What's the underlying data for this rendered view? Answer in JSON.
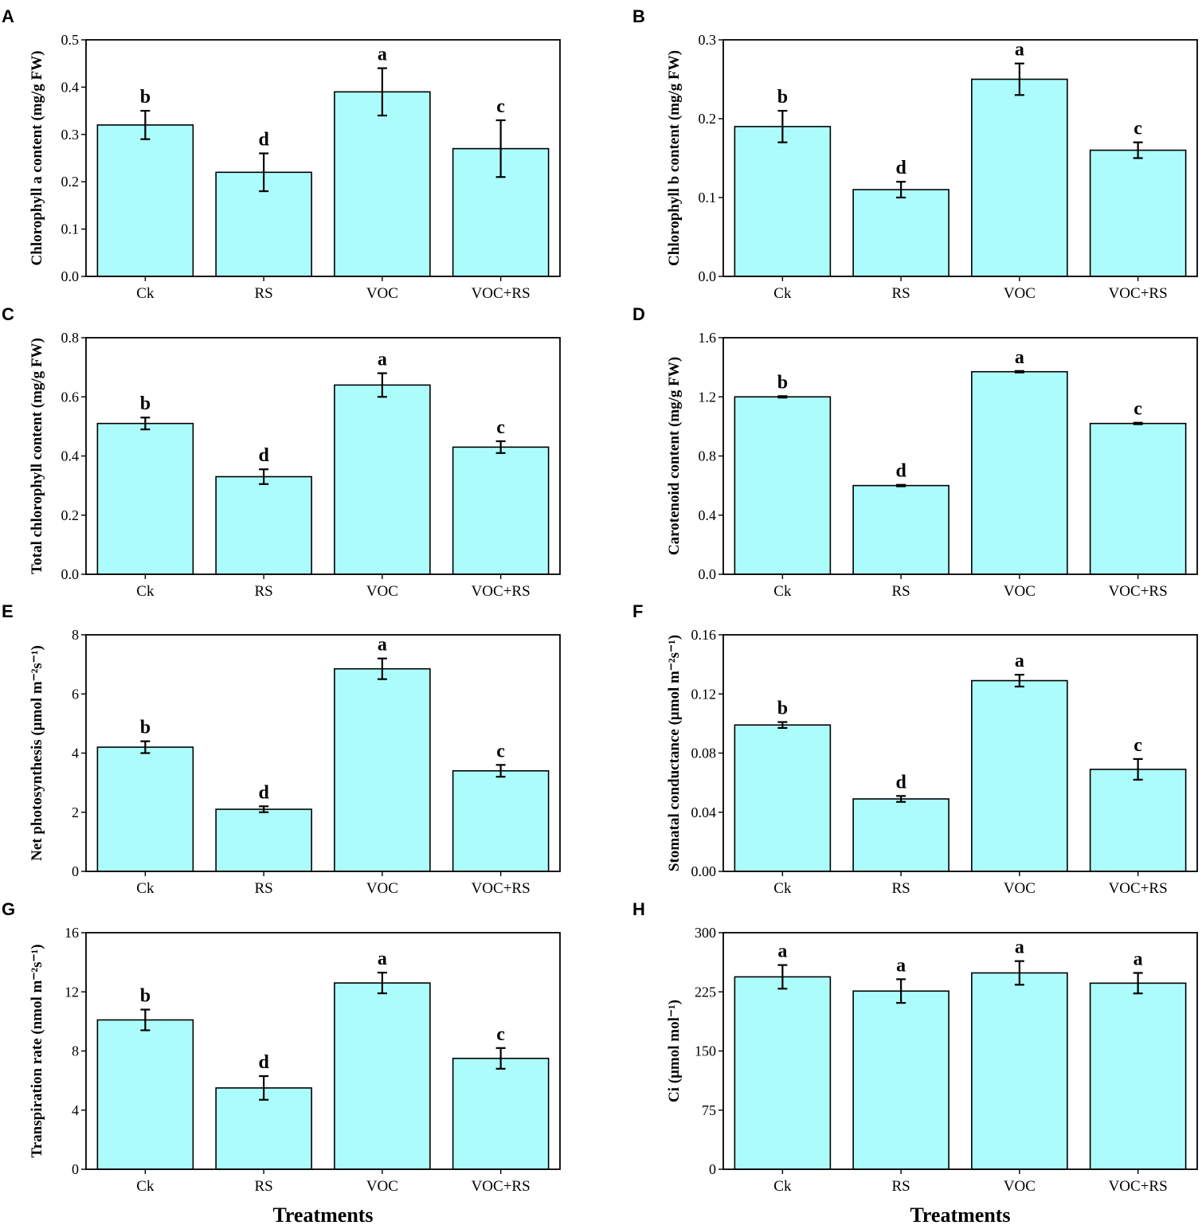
{
  "figure": {
    "x_axis_title": "Treatments",
    "bar_color": "#adfcfc",
    "axis_color": "#000000"
  },
  "chart_data": [
    {
      "panel": "A",
      "type": "bar",
      "categories": [
        "Ck",
        "RS",
        "VOC",
        "VOC+RS"
      ],
      "values": [
        0.32,
        0.22,
        0.39,
        0.27
      ],
      "errors": [
        0.03,
        0.04,
        0.05,
        0.06
      ],
      "letters": [
        "b",
        "d",
        "a",
        "c"
      ],
      "ylabel": "Chlorophyll a content (mg/g FW)",
      "ylim": [
        0,
        0.5
      ],
      "yticks": [
        "0.0",
        "0.1",
        "0.2",
        "0.3",
        "0.4",
        "0.5"
      ],
      "xlabel": ""
    },
    {
      "panel": "B",
      "type": "bar",
      "categories": [
        "Ck",
        "RS",
        "VOC",
        "VOC+RS"
      ],
      "values": [
        0.19,
        0.11,
        0.25,
        0.16
      ],
      "errors": [
        0.02,
        0.01,
        0.02,
        0.01
      ],
      "letters": [
        "b",
        "d",
        "a",
        "c"
      ],
      "ylabel": "Chlorophyll b content (mg/g FW)",
      "ylim": [
        0,
        0.3
      ],
      "yticks": [
        "0.0",
        "0.1",
        "0.2",
        "0.3"
      ],
      "xlabel": ""
    },
    {
      "panel": "C",
      "type": "bar",
      "categories": [
        "Ck",
        "RS",
        "VOC",
        "VOC+RS"
      ],
      "values": [
        0.51,
        0.33,
        0.64,
        0.43
      ],
      "errors": [
        0.02,
        0.025,
        0.04,
        0.02
      ],
      "letters": [
        "b",
        "d",
        "a",
        "c"
      ],
      "ylabel": "Total chlorophyll content (mg/g FW)",
      "ylim": [
        0,
        0.8
      ],
      "yticks": [
        "0.0",
        "0.2",
        "0.4",
        "0.6",
        "0.8"
      ],
      "xlabel": ""
    },
    {
      "panel": "D",
      "type": "bar",
      "categories": [
        "Ck",
        "RS",
        "VOC",
        "VOC+RS"
      ],
      "values": [
        1.2,
        0.6,
        1.37,
        1.02
      ],
      "errors": [
        0.005,
        0.005,
        0.005,
        0.005
      ],
      "letters": [
        "b",
        "d",
        "a",
        "c"
      ],
      "ylabel": "Carotenoid content (mg/g FW)",
      "ylim": [
        0,
        1.6
      ],
      "yticks": [
        "0.0",
        "0.4",
        "0.8",
        "1.2",
        "1.6"
      ],
      "xlabel": ""
    },
    {
      "panel": "E",
      "type": "bar",
      "categories": [
        "Ck",
        "RS",
        "VOC",
        "VOC+RS"
      ],
      "values": [
        4.2,
        2.1,
        6.85,
        3.4
      ],
      "errors": [
        0.2,
        0.1,
        0.35,
        0.2
      ],
      "letters": [
        "b",
        "d",
        "a",
        "c"
      ],
      "ylabel": "Net photosynthesis (μmol m⁻²s⁻¹)",
      "ylim": [
        0,
        8
      ],
      "yticks": [
        "0",
        "2",
        "4",
        "6",
        "8"
      ],
      "xlabel": ""
    },
    {
      "panel": "F",
      "type": "bar",
      "categories": [
        "Ck",
        "RS",
        "VOC",
        "VOC+RS"
      ],
      "values": [
        0.099,
        0.049,
        0.129,
        0.069
      ],
      "errors": [
        0.002,
        0.002,
        0.004,
        0.007
      ],
      "letters": [
        "b",
        "d",
        "a",
        "c"
      ],
      "ylabel": "Stomatal conductance (μmol m⁻²s⁻¹)",
      "ylim": [
        0,
        0.16
      ],
      "yticks": [
        "0.00",
        "0.04",
        "0.08",
        "0.12",
        "0.16"
      ],
      "xlabel": ""
    },
    {
      "panel": "G",
      "type": "bar",
      "categories": [
        "Ck",
        "RS",
        "VOC",
        "VOC+RS"
      ],
      "values": [
        10.1,
        5.5,
        12.6,
        7.5
      ],
      "errors": [
        0.7,
        0.8,
        0.7,
        0.7
      ],
      "letters": [
        "b",
        "d",
        "a",
        "c"
      ],
      "ylabel": "Transpiration rate (nmol m⁻²s⁻¹)",
      "ylim": [
        0,
        16
      ],
      "yticks": [
        "0",
        "4",
        "8",
        "12",
        "16"
      ],
      "xlabel": "Treatments"
    },
    {
      "panel": "H",
      "type": "bar",
      "categories": [
        "Ck",
        "RS",
        "VOC",
        "VOC+RS"
      ],
      "values": [
        244,
        226,
        249,
        236
      ],
      "errors": [
        15,
        15,
        15,
        13
      ],
      "letters": [
        "a",
        "a",
        "a",
        "a"
      ],
      "ylabel": "Ci (μmol mol⁻¹)",
      "ylim": [
        0,
        300
      ],
      "yticks": [
        "0",
        "75",
        "150",
        "225",
        "300"
      ],
      "xlabel": "Treatments"
    }
  ]
}
